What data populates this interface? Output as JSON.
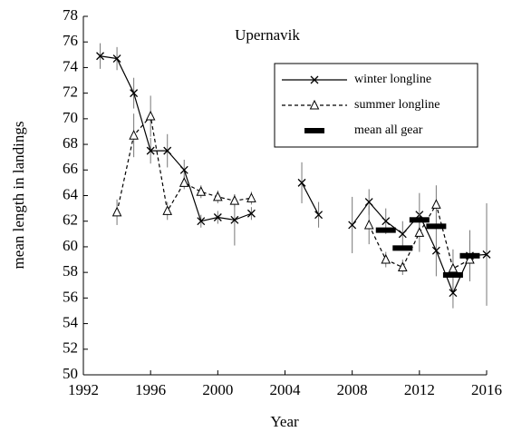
{
  "chart_data": {
    "type": "line",
    "title": "Upernavik",
    "x_label": "Year",
    "y_label": "mean length in landings",
    "x": [
      1993,
      1994,
      1995,
      1996,
      1997,
      1998,
      1999,
      2000,
      2001,
      2002,
      2003,
      2004,
      2005,
      2006,
      2007,
      2008,
      2009,
      2010,
      2011,
      2012,
      2013,
      2014,
      2015,
      2016
    ],
    "series": [
      {
        "name": "winter longline",
        "color": "#000000",
        "marker": "x",
        "dash": "solid",
        "values": [
          74.9,
          74.7,
          72.0,
          67.5,
          67.5,
          66.0,
          62.0,
          62.3,
          62.1,
          62.6,
          null,
          null,
          65.0,
          62.5,
          null,
          61.7,
          63.5,
          62.0,
          61.0,
          62.5,
          59.7,
          56.4,
          59.3,
          59.4
        ],
        "errors": [
          1.0,
          0.9,
          1.2,
          1.0,
          1.3,
          0.8,
          0.5,
          0.5,
          2.0,
          0.5,
          null,
          null,
          1.6,
          1.0,
          null,
          2.2,
          1.0,
          1.0,
          1.0,
          1.7,
          2.0,
          1.2,
          2.0,
          4.0
        ]
      },
      {
        "name": "summer longline",
        "color": "#000000",
        "marker": "triangle",
        "dash": "dashed",
        "values": [
          null,
          62.7,
          68.7,
          70.2,
          62.8,
          65.0,
          64.3,
          63.9,
          63.6,
          63.8,
          null,
          null,
          null,
          null,
          null,
          null,
          61.7,
          59.0,
          58.4,
          61.1,
          63.3,
          58.3,
          59.0,
          null
        ],
        "errors": [
          null,
          1.0,
          1.7,
          1.6,
          0.7,
          0.5,
          0.5,
          0.5,
          0.5,
          0.5,
          null,
          null,
          null,
          null,
          null,
          null,
          1.5,
          0.6,
          0.6,
          1.5,
          1.5,
          1.5,
          1.5,
          null
        ]
      },
      {
        "name": "mean all gear",
        "color": "#000000",
        "marker": "bar",
        "dash": "none",
        "values": [
          null,
          null,
          null,
          null,
          null,
          null,
          null,
          null,
          null,
          null,
          null,
          null,
          null,
          null,
          null,
          null,
          null,
          61.3,
          59.9,
          62.1,
          61.6,
          57.8,
          59.3,
          null
        ]
      }
    ],
    "xlim": [
      1992,
      2016
    ],
    "xticks": [
      1992,
      1996,
      2000,
      2004,
      2008,
      2012,
      2016
    ],
    "ylim": [
      50,
      78
    ],
    "yticks": [
      50,
      52,
      54,
      56,
      58,
      60,
      62,
      64,
      66,
      68,
      70,
      72,
      74,
      76,
      78
    ],
    "legend": "upper right"
  }
}
